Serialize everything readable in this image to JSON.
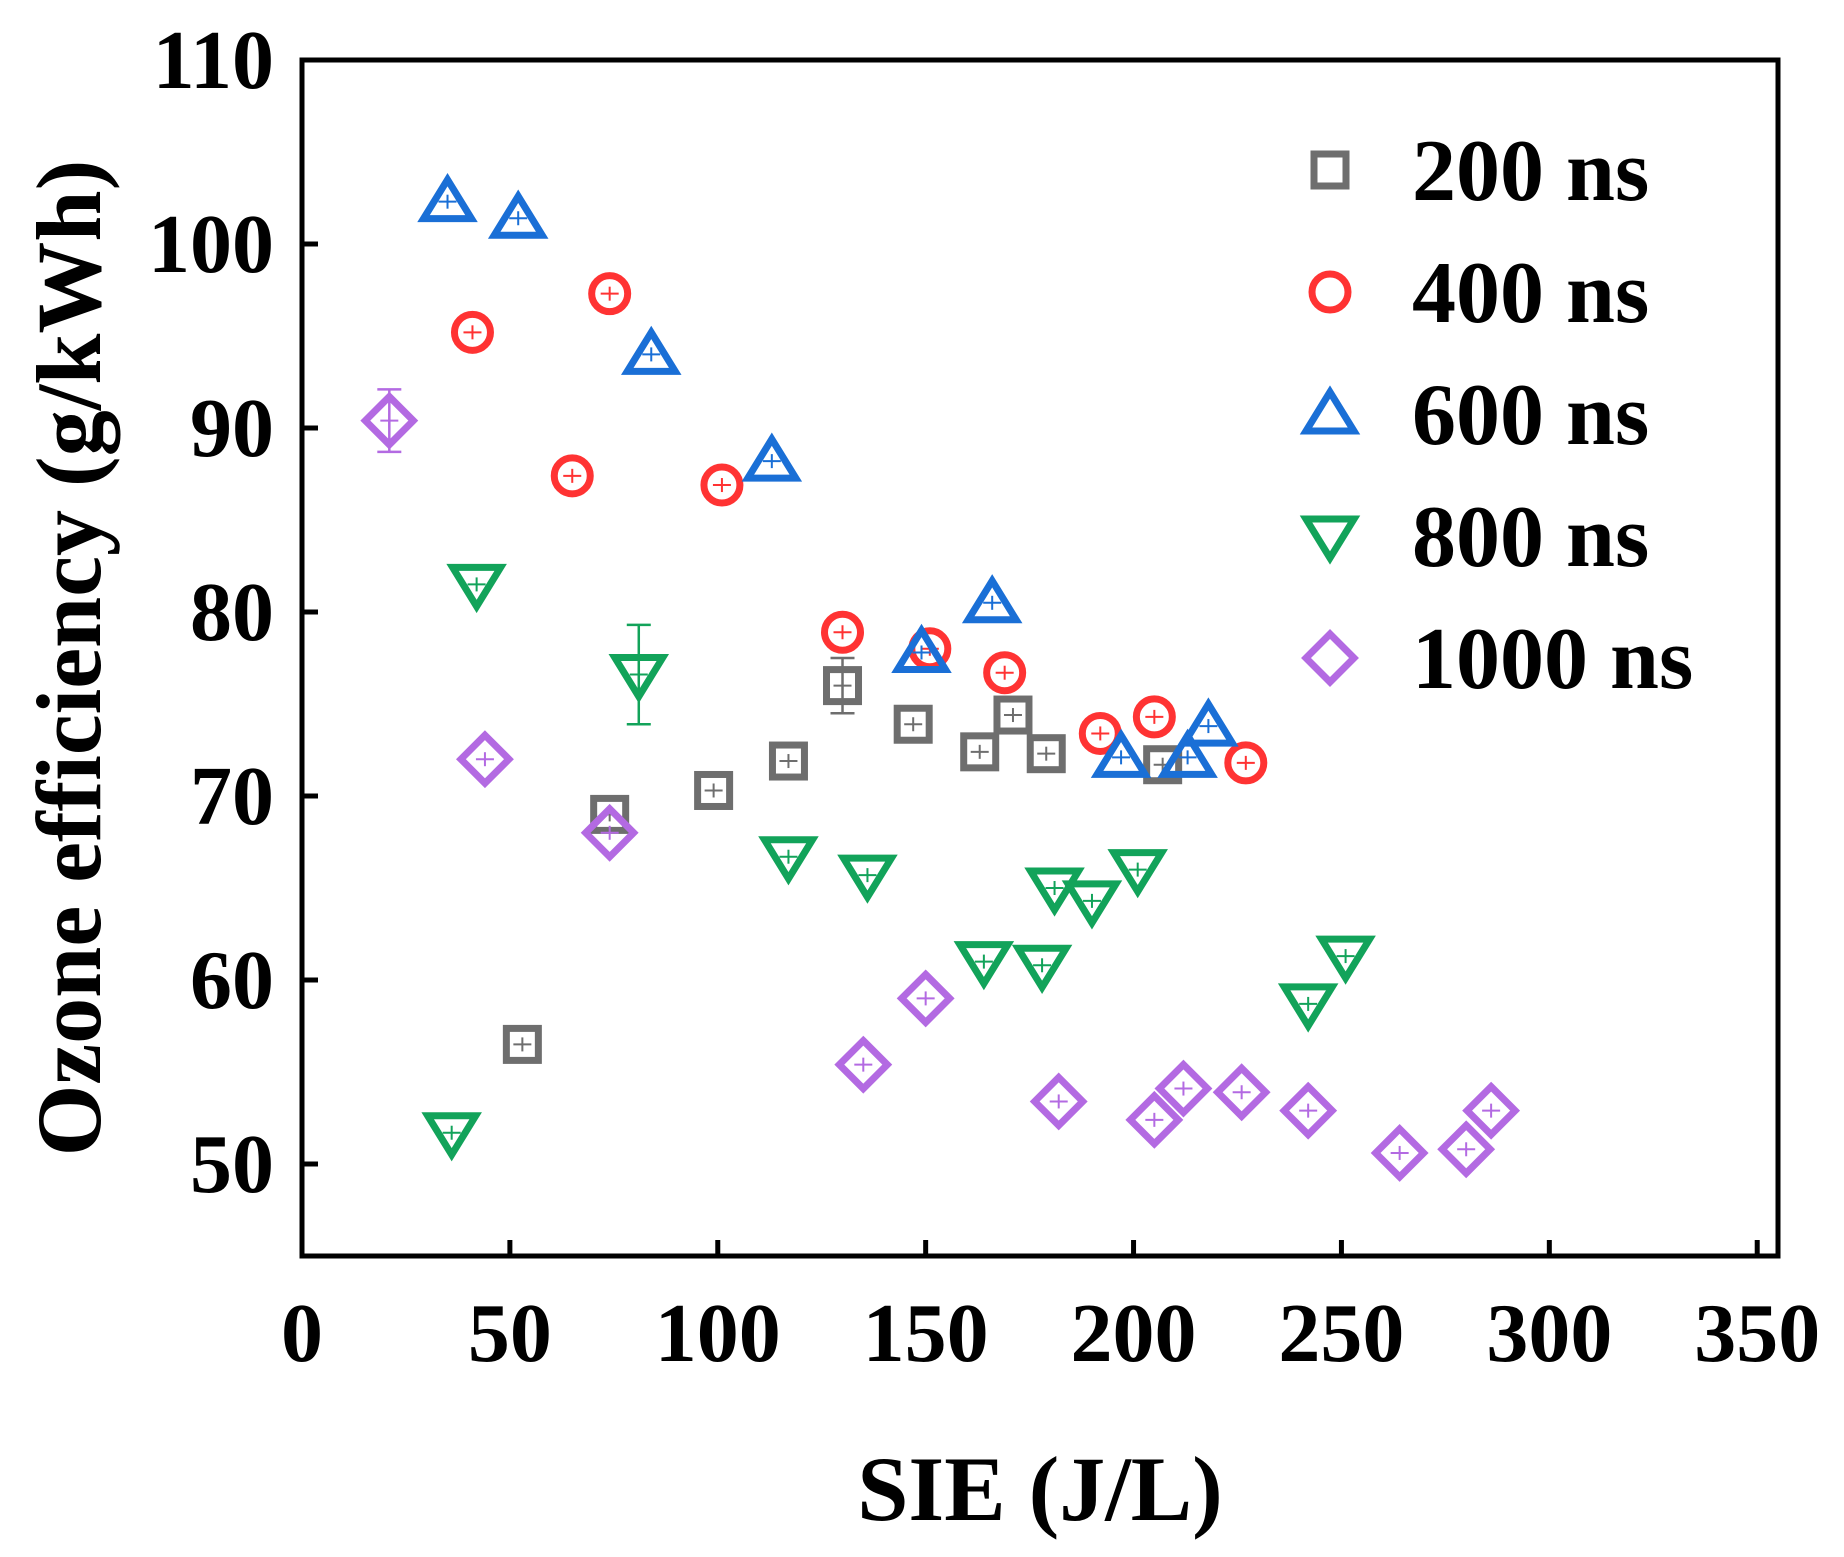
{
  "chart_data": {
    "type": "scatter",
    "title": "",
    "xlabel": "SIE (J/L)",
    "ylabel": "Ozone efficiency (g/kWh)",
    "xlim": [
      0,
      355
    ],
    "ylim": [
      45,
      110
    ],
    "xticks": [
      0,
      50,
      100,
      150,
      200,
      250,
      300,
      350
    ],
    "yticks": [
      50,
      60,
      70,
      80,
      90,
      100,
      110
    ],
    "xtick_labels": [
      "0",
      "50",
      "100",
      "150",
      "200",
      "250",
      "300",
      "350"
    ],
    "ytick_labels": [
      "50",
      "60",
      "70",
      "80",
      "90",
      "100",
      "110"
    ],
    "legend_position": "top-right",
    "series": [
      {
        "name": "200 ns",
        "marker": "square",
        "color": "#6e6e6e",
        "points": [
          {
            "x": 53,
            "y": 56.5
          },
          {
            "x": 74,
            "y": 69.0
          },
          {
            "x": 99,
            "y": 70.3
          },
          {
            "x": 117,
            "y": 71.9
          },
          {
            "x": 130,
            "y": 76.0,
            "err": 1.5
          },
          {
            "x": 147,
            "y": 73.9
          },
          {
            "x": 163,
            "y": 72.4
          },
          {
            "x": 171,
            "y": 74.4
          },
          {
            "x": 179,
            "y": 72.3
          },
          {
            "x": 207,
            "y": 71.7
          }
        ]
      },
      {
        "name": "400 ns",
        "marker": "circle",
        "color": "#ff3333",
        "points": [
          {
            "x": 41,
            "y": 95.2
          },
          {
            "x": 65,
            "y": 87.4
          },
          {
            "x": 74,
            "y": 97.3
          },
          {
            "x": 101,
            "y": 86.9
          },
          {
            "x": 130,
            "y": 78.9
          },
          {
            "x": 151,
            "y": 78.0
          },
          {
            "x": 169,
            "y": 76.7
          },
          {
            "x": 192,
            "y": 73.4
          },
          {
            "x": 205,
            "y": 74.3
          },
          {
            "x": 227,
            "y": 71.8
          }
        ]
      },
      {
        "name": "600 ns",
        "marker": "triangle-up",
        "color": "#1a6fd6",
        "points": [
          {
            "x": 35,
            "y": 102.3
          },
          {
            "x": 52,
            "y": 101.4
          },
          {
            "x": 84,
            "y": 94.0
          },
          {
            "x": 113,
            "y": 88.2
          },
          {
            "x": 149,
            "y": 77.8
          },
          {
            "x": 166,
            "y": 80.5
          },
          {
            "x": 197,
            "y": 72.1
          },
          {
            "x": 213,
            "y": 72.1
          },
          {
            "x": 218,
            "y": 73.8
          }
        ]
      },
      {
        "name": "800 ns",
        "marker": "triangle-down",
        "color": "#12a35a",
        "points": [
          {
            "x": 36,
            "y": 51.7
          },
          {
            "x": 42,
            "y": 81.5
          },
          {
            "x": 81,
            "y": 76.6,
            "err": 2.7
          },
          {
            "x": 117,
            "y": 66.7
          },
          {
            "x": 136,
            "y": 65.7
          },
          {
            "x": 164,
            "y": 61.0
          },
          {
            "x": 178,
            "y": 60.8
          },
          {
            "x": 181,
            "y": 65.0
          },
          {
            "x": 190,
            "y": 64.3
          },
          {
            "x": 201,
            "y": 66.0
          },
          {
            "x": 242,
            "y": 58.7
          },
          {
            "x": 251,
            "y": 61.3
          }
        ]
      },
      {
        "name": "1000 ns",
        "marker": "diamond",
        "color": "#b36ae2",
        "points": [
          {
            "x": 21,
            "y": 90.4,
            "err": 1.7
          },
          {
            "x": 44,
            "y": 72.0
          },
          {
            "x": 74,
            "y": 68.0
          },
          {
            "x": 135,
            "y": 55.4
          },
          {
            "x": 150,
            "y": 59.0
          },
          {
            "x": 182,
            "y": 53.4
          },
          {
            "x": 205,
            "y": 52.4
          },
          {
            "x": 212,
            "y": 54.1
          },
          {
            "x": 226,
            "y": 53.9
          },
          {
            "x": 242,
            "y": 52.9
          },
          {
            "x": 264,
            "y": 50.6
          },
          {
            "x": 280,
            "y": 50.8
          },
          {
            "x": 286,
            "y": 52.9
          }
        ]
      }
    ]
  }
}
